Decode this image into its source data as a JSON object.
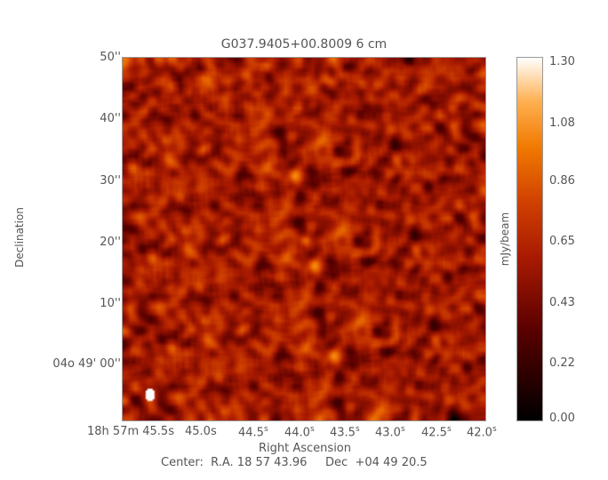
{
  "chart_data": {
    "type": "heatmap",
    "title": "G037.9405+00.8009 6 cm",
    "xlabel": "Right Ascension",
    "ylabel": "Declination",
    "x_ticks": [
      "18h 57m 45.5s",
      "45.0s",
      "44.5s",
      "44.0s",
      "43.5s",
      "43.0s",
      "42.5s",
      "42.0s"
    ],
    "y_ticks": [
      "50''",
      "40''",
      "30''",
      "20''",
      "10''",
      "04o 49' 00''"
    ],
    "colorbar": {
      "label": "mJy/beam",
      "range": [
        0.0,
        1.3
      ],
      "ticks": [
        "1.30",
        "1.08",
        "0.86",
        "0.65",
        "0.43",
        "0.22",
        "0.00"
      ],
      "colormap": "red-temperature"
    },
    "center_text": "Center:  R.A. 18 57 43.96     Dec  +04 49 20.5",
    "source": {
      "ra": "18 57 43.96",
      "dec": "+04 49 20.5"
    }
  }
}
